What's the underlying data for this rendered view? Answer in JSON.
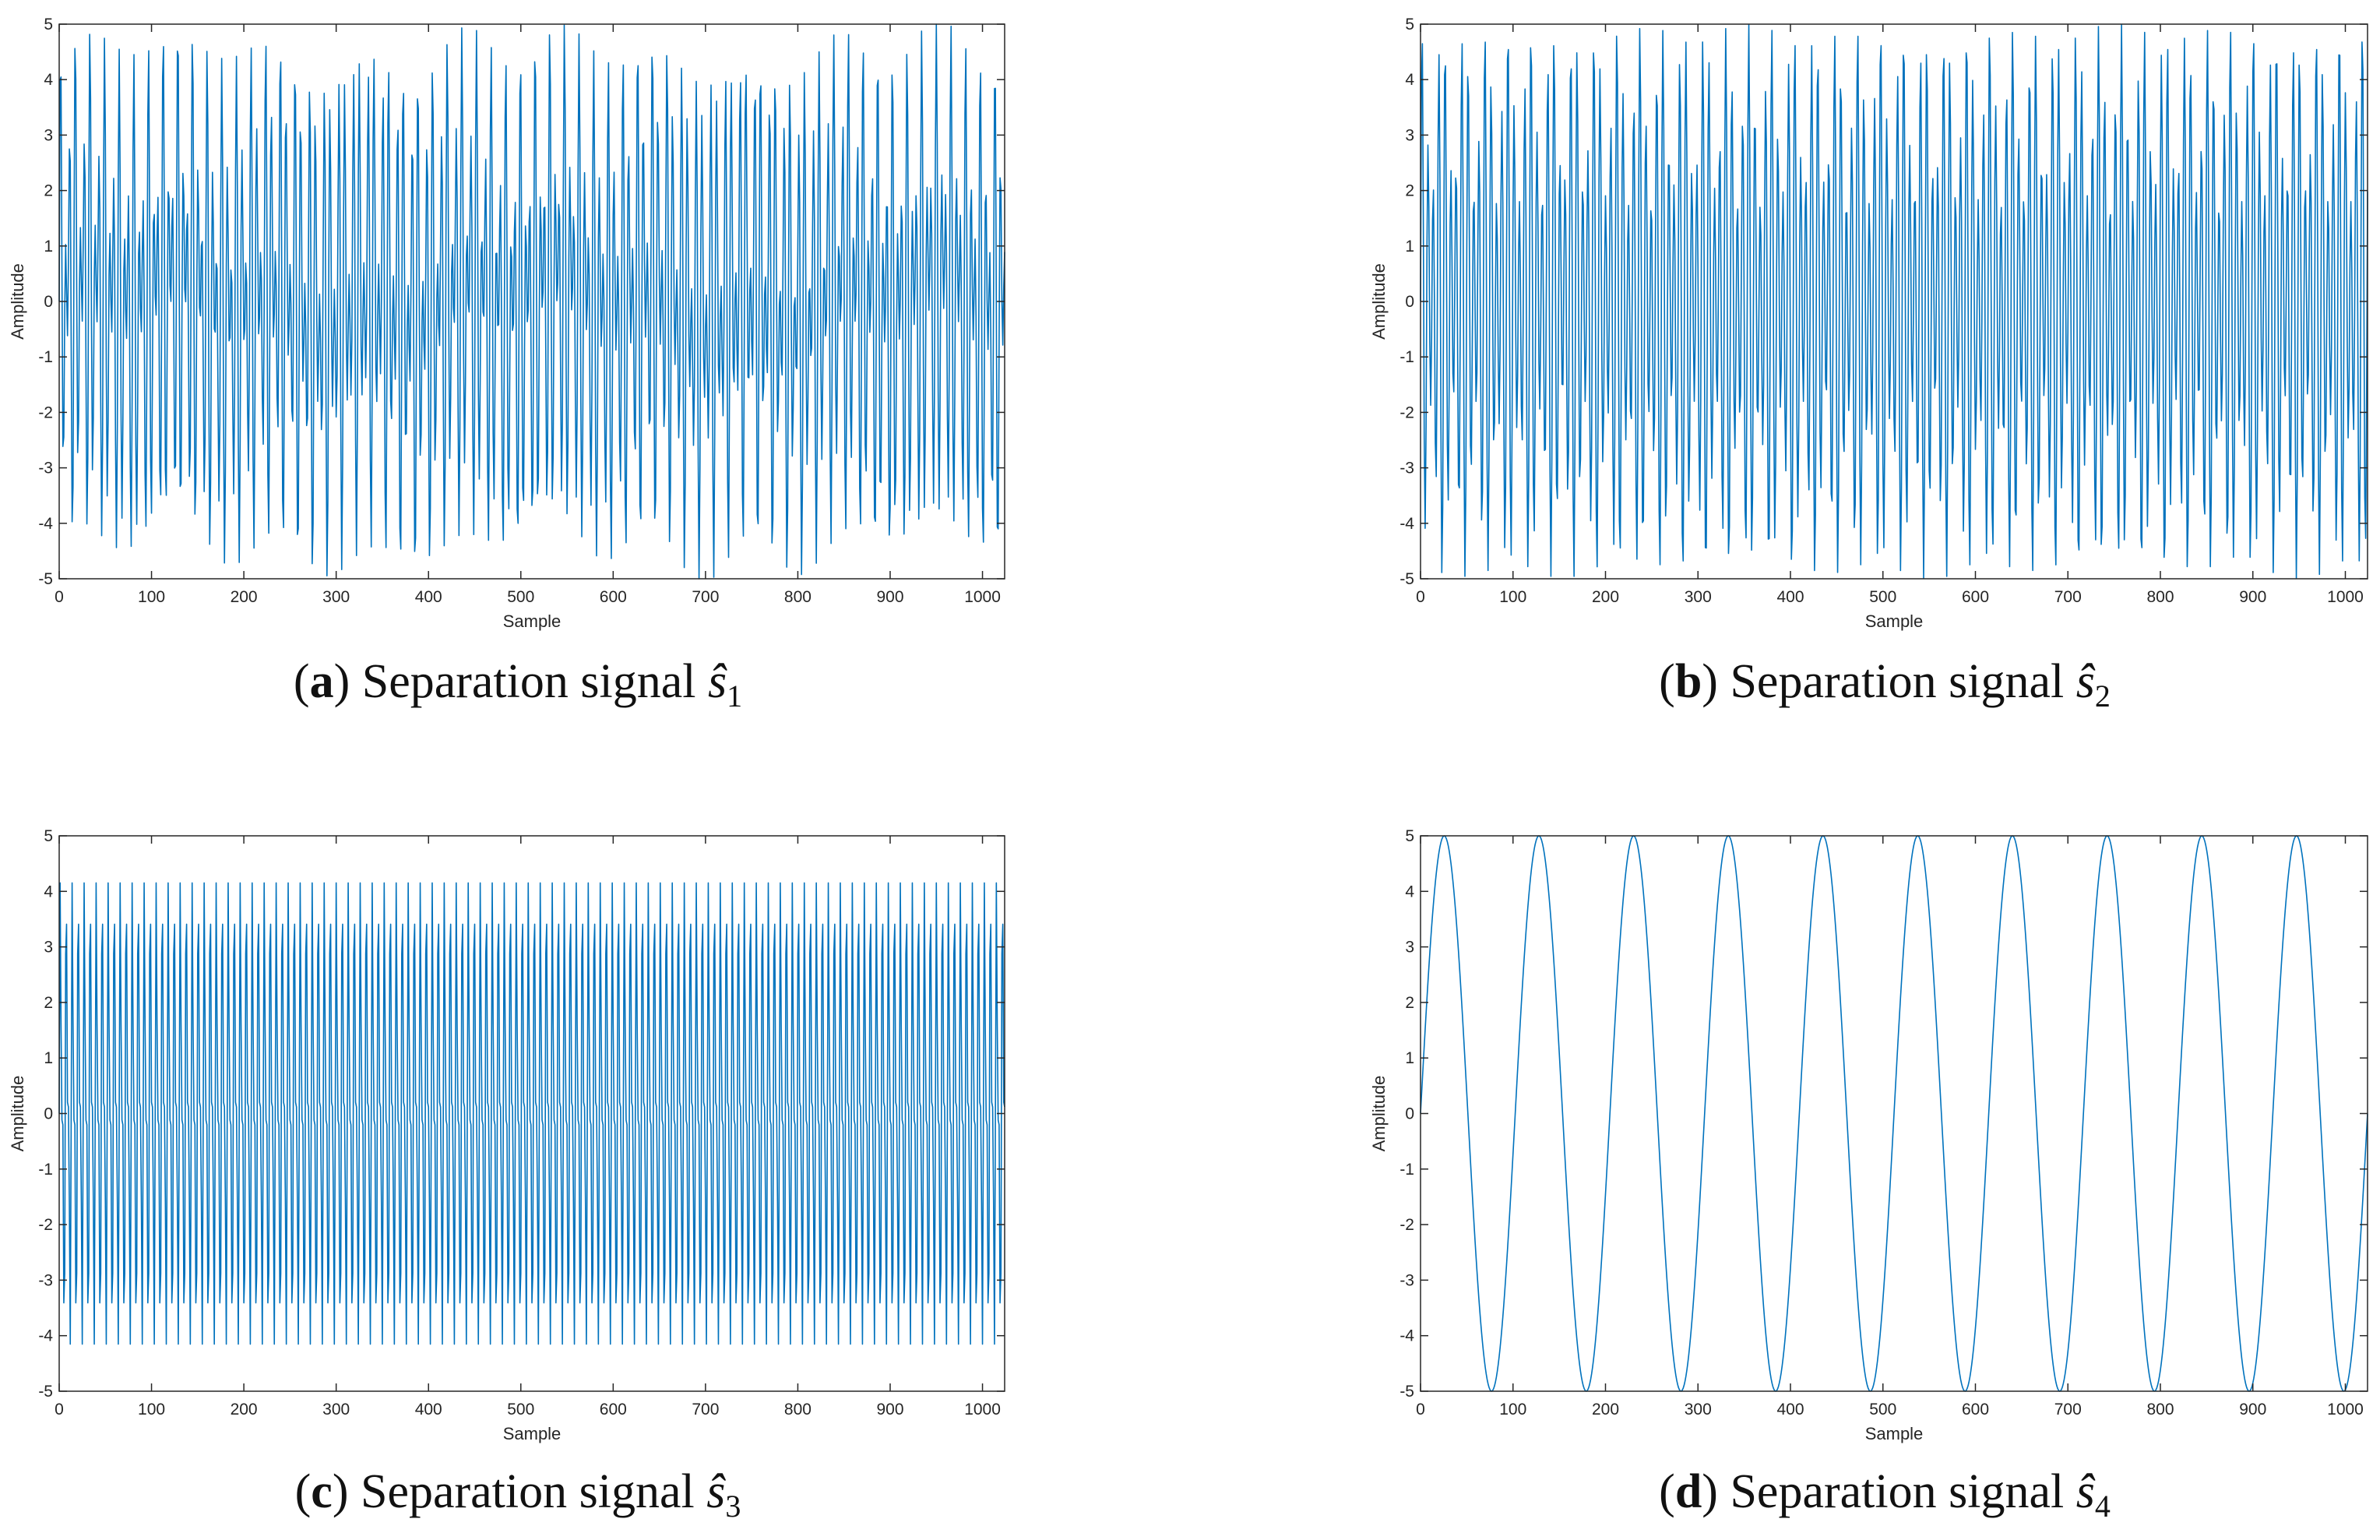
{
  "chart_data": [
    {
      "type": "line",
      "panel_label": "a",
      "caption_text": "Separation signal",
      "signal_symbol": "ŝ",
      "signal_index": "1",
      "xlabel": "Sample",
      "ylabel": "Amplitude",
      "xlim": [
        0,
        1024
      ],
      "ylim": [
        -5,
        5
      ],
      "xticks": [
        "0",
        "100",
        "200",
        "300",
        "400",
        "500",
        "600",
        "700",
        "800",
        "900",
        "1000"
      ],
      "yticks": [
        "5",
        "4",
        "3",
        "2",
        "1",
        "0",
        "-1",
        "-2",
        "-3",
        "-4",
        "-5"
      ],
      "series": [
        {
          "name": "ŝ1",
          "n_samples": 1024,
          "color": "#0072bd",
          "components": [
            {
              "amplitude": 2.6,
              "period_samples": 5.3
            },
            {
              "amplitude": 2.2,
              "period_samples": 7.9
            },
            {
              "amplitude": 0.3,
              "period_samples": 103
            }
          ]
        }
      ]
    },
    {
      "type": "line",
      "panel_label": "b",
      "caption_text": "Separation signal",
      "signal_symbol": "ŝ",
      "signal_index": "2",
      "xlabel": "Sample",
      "ylabel": "Amplitude",
      "xlim": [
        0,
        1024
      ],
      "ylim": [
        -5,
        5
      ],
      "xticks": [
        "0",
        "100",
        "200",
        "300",
        "400",
        "500",
        "600",
        "700",
        "800",
        "900",
        "1000"
      ],
      "yticks": [
        "5",
        "4",
        "3",
        "2",
        "1",
        "0",
        "-1",
        "-2",
        "-3",
        "-4",
        "-5"
      ],
      "series": [
        {
          "name": "ŝ2",
          "n_samples": 1024,
          "color": "#0072bd",
          "components": [
            {
              "amplitude": 3.4,
              "period_samples": 6.2
            },
            {
              "amplitude": 1.6,
              "period_samples": 8.4
            }
          ]
        }
      ]
    },
    {
      "type": "line",
      "panel_label": "c",
      "caption_text": "Separation signal",
      "signal_symbol": "ŝ",
      "signal_index": "3",
      "xlabel": "Sample",
      "ylabel": "Amplitude",
      "xlim": [
        0,
        1024
      ],
      "ylim": [
        -5,
        5
      ],
      "xticks": [
        "0",
        "100",
        "200",
        "300",
        "400",
        "500",
        "600",
        "700",
        "800",
        "900",
        "1000"
      ],
      "yticks": [
        "5",
        "4",
        "3",
        "2",
        "1",
        "0",
        "-1",
        "-2",
        "-3",
        "-4",
        "-5"
      ],
      "series": [
        {
          "name": "ŝ3",
          "n_samples": 1024,
          "color": "#0072bd",
          "components": [
            {
              "amplitude": 3.0,
              "period_samples": 6.5
            },
            {
              "amplitude": 1.8,
              "period_samples": 3.25
            }
          ]
        }
      ]
    },
    {
      "type": "line",
      "panel_label": "d",
      "caption_text": "Separation signal",
      "signal_symbol": "ŝ",
      "signal_index": "4",
      "xlabel": "Sample",
      "ylabel": "Amplitude",
      "xlim": [
        0,
        1024
      ],
      "ylim": [
        -5,
        5
      ],
      "xticks": [
        "0",
        "100",
        "200",
        "300",
        "400",
        "500",
        "600",
        "700",
        "800",
        "900",
        "1000"
      ],
      "yticks": [
        "5",
        "4",
        "3",
        "2",
        "1",
        "0",
        "-1",
        "-2",
        "-3",
        "-4",
        "-5"
      ],
      "series": [
        {
          "name": "ŝ4",
          "n_samples": 1024,
          "color": "#0072bd",
          "components": [
            {
              "amplitude": 5.0,
              "period_samples": 102.4
            }
          ]
        }
      ]
    }
  ]
}
